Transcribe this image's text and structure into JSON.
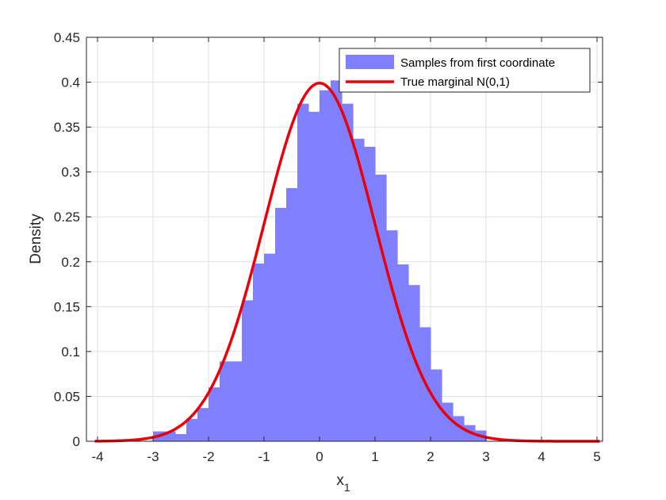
{
  "chart_data": {
    "type": "bar",
    "xlabel": "x",
    "xlabel_sub": "1",
    "ylabel": "Density",
    "xlim": [
      -4.2,
      5.1
    ],
    "ylim": [
      0,
      0.45
    ],
    "xticks": [
      -4,
      -3,
      -2,
      -1,
      0,
      1,
      2,
      3,
      4,
      5
    ],
    "yticks": [
      0,
      0.05,
      0.1,
      0.15,
      0.2,
      0.25,
      0.3,
      0.35,
      0.4,
      0.45
    ],
    "grid": true,
    "legend_position": "top-right",
    "series": [
      {
        "name": "Samples from first coordinate",
        "type": "histogram",
        "color": "#8080ff",
        "bin_edges": [
          -3.0,
          -2.8,
          -2.6,
          -2.4,
          -2.2,
          -2.0,
          -1.8,
          -1.6,
          -1.4,
          -1.2,
          -1.0,
          -0.8,
          -0.6,
          -0.4,
          -0.2,
          0.0,
          0.2,
          0.4,
          0.6,
          0.8,
          1.0,
          1.2,
          1.4,
          1.6,
          1.8,
          2.0,
          2.2,
          2.4,
          2.6,
          2.8
        ],
        "values": [
          0.011,
          0.011,
          0.008,
          0.025,
          0.037,
          0.06,
          0.089,
          0.089,
          0.157,
          0.198,
          0.209,
          0.26,
          0.282,
          0.376,
          0.367,
          0.391,
          0.402,
          0.376,
          0.337,
          0.328,
          0.297,
          0.235,
          0.197,
          0.174,
          0.127,
          0.08,
          0.043,
          0.028,
          0.018,
          0.012
        ]
      },
      {
        "name": "True marginal N(0,1)",
        "type": "line",
        "color": "#e8000b",
        "function": "normal_pdf",
        "mean": 0,
        "std": 1
      }
    ]
  }
}
